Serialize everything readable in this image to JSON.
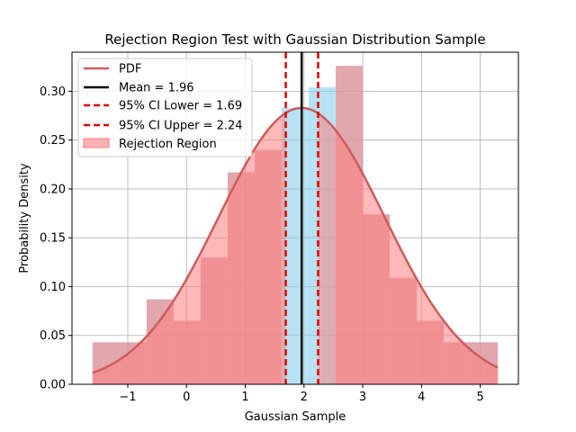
{
  "chart_data": {
    "type": "bar",
    "title": "Rejection Region Test with Gaussian Distribution Sample",
    "xlabel": "Gaussian Sample",
    "ylabel": "Probability Density",
    "xlim": [
      -1.95,
      5.65
    ],
    "ylim": [
      0,
      0.34
    ],
    "xticks": [
      -1,
      0,
      1,
      2,
      3,
      4,
      5
    ],
    "xtick_labels": [
      "−1",
      "0",
      "1",
      "2",
      "3",
      "4",
      "5"
    ],
    "yticks": [
      0.0,
      0.05,
      0.1,
      0.15,
      0.2,
      0.25,
      0.3
    ],
    "ytick_labels": [
      "0.00",
      "0.05",
      "0.10",
      "0.15",
      "0.20",
      "0.25",
      "0.30"
    ],
    "grid": true,
    "legend_position": "upper-left",
    "histogram": {
      "name": "",
      "bin_edges": [
        -1.6,
        -1.14,
        -0.68,
        -0.22,
        0.24,
        0.7,
        1.16,
        1.62,
        2.08,
        2.54,
        3.0,
        3.46,
        3.92,
        4.38,
        4.84,
        5.3
      ],
      "density": [
        0.043,
        0.043,
        0.087,
        0.065,
        0.13,
        0.217,
        0.24,
        0.283,
        0.304,
        0.326,
        0.174,
        0.109,
        0.065,
        0.043,
        0.043
      ],
      "color": "#87ceeb"
    },
    "rejection_region": {
      "label": "Rejection Region",
      "color": "#ff7f7f",
      "description": "histogram bars drawn in red where the bin lies outside the 95% CI"
    },
    "pdf": {
      "label": "PDF",
      "mean": 1.96,
      "std": 1.41,
      "x_range": [
        -1.6,
        5.3
      ],
      "color": "#cd5c5c"
    },
    "vlines": [
      {
        "label": "Mean = 1.96",
        "x": 1.96,
        "color": "#000000",
        "style": "solid"
      },
      {
        "label": "95% CI Lower = 1.69",
        "x": 1.69,
        "color": "#e00000",
        "style": "dashed"
      },
      {
        "label": "95% CI Upper = 2.24",
        "x": 2.24,
        "color": "#e00000",
        "style": "dashed"
      }
    ]
  }
}
